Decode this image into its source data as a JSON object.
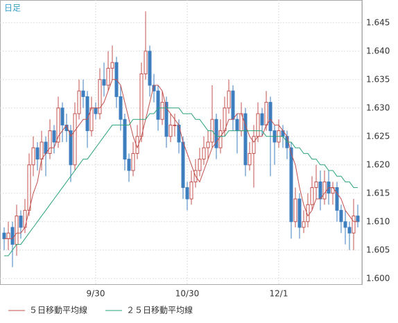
{
  "chart_data": {
    "type": "candlestick",
    "title": "日足",
    "categories": [
      null,
      null,
      null,
      null,
      null,
      null,
      null,
      null,
      null,
      null,
      null,
      null,
      null,
      null,
      null,
      null,
      null,
      null,
      null,
      null,
      null,
      null,
      "9/30",
      null,
      null,
      null,
      null,
      null,
      null,
      null,
      null,
      null,
      null,
      null,
      null,
      null,
      null,
      null,
      null,
      null,
      null,
      null,
      null,
      null,
      "10/30",
      null,
      null,
      null,
      null,
      null,
      null,
      null,
      null,
      null,
      null,
      null,
      null,
      null,
      null,
      null,
      null,
      null,
      null,
      null,
      null,
      null,
      "12/1",
      null,
      null,
      null,
      null,
      null,
      null,
      null,
      null,
      null,
      null,
      null,
      null,
      null,
      null,
      null,
      null,
      null,
      null,
      null
    ],
    "candles": [
      [
        1.608,
        1.609,
        1.605,
        1.607
      ],
      [
        1.607,
        1.61,
        1.605,
        1.608
      ],
      [
        1.609,
        1.61,
        1.602,
        1.606
      ],
      [
        1.606,
        1.613,
        1.604,
        1.611
      ],
      [
        1.611,
        1.612,
        1.607,
        1.609
      ],
      [
        1.609,
        1.614,
        1.608,
        1.612
      ],
      [
        1.612,
        1.622,
        1.611,
        1.62
      ],
      [
        1.62,
        1.625,
        1.618,
        1.623
      ],
      [
        1.623,
        1.624,
        1.619,
        1.621
      ],
      [
        1.621,
        1.626,
        1.619,
        1.624
      ],
      [
        1.624,
        1.625,
        1.618,
        1.622
      ],
      [
        1.622,
        1.628,
        1.621,
        1.626
      ],
      [
        1.626,
        1.627,
        1.622,
        1.624
      ],
      [
        1.624,
        1.632,
        1.623,
        1.63
      ],
      [
        1.63,
        1.631,
        1.624,
        1.627
      ],
      [
        1.627,
        1.629,
        1.624,
        1.626
      ],
      [
        1.626,
        1.627,
        1.617,
        1.62
      ],
      [
        1.62,
        1.631,
        1.619,
        1.629
      ],
      [
        1.629,
        1.635,
        1.628,
        1.633
      ],
      [
        1.633,
        1.635,
        1.63,
        1.632
      ],
      [
        1.632,
        1.633,
        1.623,
        1.626
      ],
      [
        1.626,
        1.632,
        1.625,
        1.63
      ],
      [
        1.63,
        1.631,
        1.628,
        1.629
      ],
      [
        1.629,
        1.637,
        1.628,
        1.635
      ],
      [
        1.635,
        1.638,
        1.632,
        1.634
      ],
      [
        1.634,
        1.64,
        1.633,
        1.637
      ],
      [
        1.637,
        1.641,
        1.635,
        1.638
      ],
      [
        1.638,
        1.639,
        1.63,
        1.632
      ],
      [
        1.632,
        1.634,
        1.626,
        1.628
      ],
      [
        1.628,
        1.629,
        1.619,
        1.621
      ],
      [
        1.621,
        1.622,
        1.617,
        1.619
      ],
      [
        1.619,
        1.624,
        1.618,
        1.622
      ],
      [
        1.622,
        1.627,
        1.621,
        1.625
      ],
      [
        1.625,
        1.638,
        1.624,
        1.636
      ],
      [
        1.636,
        1.647,
        1.635,
        1.64
      ],
      [
        1.64,
        1.641,
        1.632,
        1.634
      ],
      [
        1.634,
        1.636,
        1.631,
        1.633
      ],
      [
        1.633,
        1.634,
        1.626,
        1.628
      ],
      [
        1.628,
        1.633,
        1.627,
        1.631
      ],
      [
        1.631,
        1.632,
        1.623,
        1.625
      ],
      [
        1.625,
        1.629,
        1.624,
        1.627
      ],
      [
        1.627,
        1.629,
        1.625,
        1.627
      ],
      [
        1.627,
        1.628,
        1.622,
        1.624
      ],
      [
        1.624,
        1.625,
        1.614,
        1.616
      ],
      [
        1.616,
        1.617,
        1.612,
        1.614
      ],
      [
        1.614,
        1.619,
        1.613,
        1.617
      ],
      [
        1.617,
        1.621,
        1.616,
        1.619
      ],
      [
        1.619,
        1.623,
        1.618,
        1.621
      ],
      [
        1.621,
        1.625,
        1.62,
        1.623
      ],
      [
        1.623,
        1.626,
        1.621,
        1.624
      ],
      [
        1.624,
        1.634,
        1.623,
        1.628
      ],
      [
        1.628,
        1.629,
        1.621,
        1.623
      ],
      [
        1.623,
        1.628,
        1.622,
        1.626
      ],
      [
        1.626,
        1.632,
        1.625,
        1.63
      ],
      [
        1.63,
        1.635,
        1.629,
        1.633
      ],
      [
        1.633,
        1.634,
        1.626,
        1.628
      ],
      [
        1.628,
        1.629,
        1.622,
        1.626
      ],
      [
        1.626,
        1.631,
        1.625,
        1.629
      ],
      [
        1.629,
        1.63,
        1.618,
        1.62
      ],
      [
        1.62,
        1.624,
        1.619,
        1.622
      ],
      [
        1.622,
        1.627,
        1.616,
        1.625
      ],
      [
        1.625,
        1.631,
        1.624,
        1.629
      ],
      [
        1.629,
        1.63,
        1.625,
        1.627
      ],
      [
        1.627,
        1.633,
        1.626,
        1.631
      ],
      [
        1.631,
        1.632,
        1.618,
        1.626
      ],
      [
        1.626,
        1.627,
        1.62,
        1.624
      ],
      [
        1.624,
        1.628,
        1.623,
        1.626
      ],
      [
        1.626,
        1.627,
        1.623,
        1.625
      ],
      [
        1.625,
        1.626,
        1.621,
        1.623
      ],
      [
        1.623,
        1.624,
        1.607,
        1.61
      ],
      [
        1.61,
        1.616,
        1.609,
        1.614
      ],
      [
        1.614,
        1.615,
        1.607,
        1.609
      ],
      [
        1.609,
        1.612,
        1.608,
        1.61
      ],
      [
        1.61,
        1.615,
        1.609,
        1.613
      ],
      [
        1.613,
        1.618,
        1.612,
        1.616
      ],
      [
        1.616,
        1.62,
        1.614,
        1.617
      ],
      [
        1.617,
        1.619,
        1.612,
        1.614
      ],
      [
        1.614,
        1.619,
        1.613,
        1.617
      ],
      [
        1.617,
        1.619,
        1.613,
        1.615
      ],
      [
        1.615,
        1.617,
        1.613,
        1.616
      ],
      [
        1.616,
        1.617,
        1.61,
        1.612
      ],
      [
        1.612,
        1.613,
        1.608,
        1.61
      ],
      [
        1.61,
        1.612,
        1.606,
        1.609
      ],
      [
        1.609,
        1.61,
        1.605,
        1.608
      ],
      [
        1.608,
        1.614,
        1.605,
        1.611
      ],
      [
        1.611,
        1.613,
        1.609,
        1.61
      ]
    ],
    "up_color": "#c0504d",
    "down_color": "#3d7ebf",
    "series": [
      {
        "name": "５日移動平均線",
        "color": "#c0504d",
        "values": [
          1.607,
          1.607,
          1.607,
          1.608,
          1.608,
          1.609,
          1.612,
          1.615,
          1.617,
          1.621,
          1.622,
          1.623,
          1.623,
          1.625,
          1.626,
          1.627,
          1.625,
          1.626,
          1.627,
          1.628,
          1.628,
          1.63,
          1.63,
          1.63,
          1.631,
          1.633,
          1.635,
          1.635,
          1.634,
          1.631,
          1.628,
          1.625,
          1.623,
          1.625,
          1.628,
          1.631,
          1.634,
          1.634,
          1.633,
          1.63,
          1.629,
          1.628,
          1.627,
          1.624,
          1.622,
          1.62,
          1.618,
          1.617,
          1.619,
          1.621,
          1.623,
          1.624,
          1.625,
          1.626,
          1.628,
          1.628,
          1.629,
          1.629,
          1.627,
          1.625,
          1.624,
          1.625,
          1.625,
          1.627,
          1.628,
          1.627,
          1.627,
          1.626,
          1.625,
          1.622,
          1.62,
          1.616,
          1.613,
          1.611,
          1.612,
          1.614,
          1.614,
          1.615,
          1.616,
          1.616,
          1.615,
          1.614,
          1.612,
          1.611,
          1.61,
          1.61
        ]
      },
      {
        "name": "２５日移動平均線",
        "color": "#2aa37a",
        "values": [
          1.604,
          1.604,
          1.605,
          1.606,
          1.606,
          1.607,
          1.608,
          1.609,
          1.61,
          1.611,
          1.612,
          1.613,
          1.614,
          1.615,
          1.616,
          1.617,
          1.618,
          1.619,
          1.62,
          1.621,
          1.621,
          1.622,
          1.623,
          1.624,
          1.625,
          1.626,
          1.627,
          1.627,
          1.627,
          1.627,
          1.627,
          1.628,
          1.628,
          1.628,
          1.628,
          1.629,
          1.629,
          1.63,
          1.63,
          1.63,
          1.63,
          1.63,
          1.63,
          1.629,
          1.629,
          1.629,
          1.628,
          1.628,
          1.627,
          1.626,
          1.626,
          1.625,
          1.625,
          1.625,
          1.626,
          1.626,
          1.626,
          1.626,
          1.626,
          1.626,
          1.626,
          1.626,
          1.626,
          1.625,
          1.625,
          1.625,
          1.625,
          1.625,
          1.624,
          1.624,
          1.623,
          1.623,
          1.622,
          1.622,
          1.621,
          1.621,
          1.62,
          1.62,
          1.619,
          1.619,
          1.618,
          1.618,
          1.617,
          1.617,
          1.616,
          1.616
        ]
      }
    ],
    "ylim": [
      1.599,
      1.649
    ],
    "yticks": [
      {
        "value": 1.6,
        "label": "1.600"
      },
      {
        "value": 1.605,
        "label": "1.605"
      },
      {
        "value": 1.61,
        "label": "1.610"
      },
      {
        "value": 1.615,
        "label": "1.615"
      },
      {
        "value": 1.62,
        "label": "1.620"
      },
      {
        "value": 1.625,
        "label": "1.625"
      },
      {
        "value": 1.63,
        "label": "1.630"
      },
      {
        "value": 1.635,
        "label": "1.635"
      },
      {
        "value": 1.64,
        "label": "1.640"
      },
      {
        "value": 1.645,
        "label": "1.645"
      }
    ],
    "grid": true
  }
}
